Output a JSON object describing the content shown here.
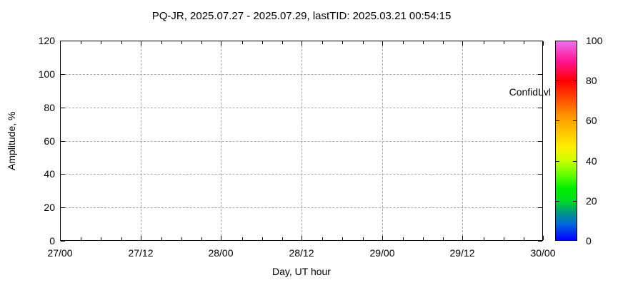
{
  "chart_data": {
    "type": "scatter",
    "title": "PQ-JR, 2025.07.27 - 2025.07.29, lastTID: 2025.03.21 00:54:15",
    "xlabel": "Day, UT hour",
    "ylabel": "Amplitude, %",
    "x_tick_labels": [
      "27/00",
      "27/12",
      "28/00",
      "28/12",
      "29/00",
      "29/12",
      "30/00"
    ],
    "x_minor_ticks_per_major": 4,
    "y_ticks": [
      0,
      20,
      40,
      60,
      80,
      100,
      120
    ],
    "ylim": [
      0,
      120
    ],
    "grid": true,
    "legend_position": "top-right-inside",
    "series": [
      {
        "name": "ConfidLvl",
        "marker": "plus",
        "color": "#00c400",
        "points": []
      }
    ],
    "colorbar": {
      "range": [
        0,
        100
      ],
      "ticks": [
        0,
        20,
        40,
        60,
        80,
        100
      ],
      "minor_tick_values": [
        20,
        40,
        60,
        80
      ],
      "gradient_stops": [
        {
          "value": 0,
          "color": "#0000ff"
        },
        {
          "value": 8,
          "color": "#0066dd"
        },
        {
          "value": 14,
          "color": "#00997f"
        },
        {
          "value": 20,
          "color": "#00dd22"
        },
        {
          "value": 26,
          "color": "#00ee00"
        },
        {
          "value": 33,
          "color": "#66ff00"
        },
        {
          "value": 40,
          "color": "#ccff00"
        },
        {
          "value": 47,
          "color": "#ffee00"
        },
        {
          "value": 56,
          "color": "#ffbb00"
        },
        {
          "value": 62,
          "color": "#ff9900"
        },
        {
          "value": 70,
          "color": "#ff5500"
        },
        {
          "value": 80,
          "color": "#ff0000"
        },
        {
          "value": 90,
          "color": "#ff1493"
        },
        {
          "value": 100,
          "color": "#ee70ee"
        }
      ]
    },
    "colors": {
      "grid": "#a8a8a8",
      "axis": "#000000",
      "background": "#ffffff",
      "text": "#000000"
    }
  }
}
